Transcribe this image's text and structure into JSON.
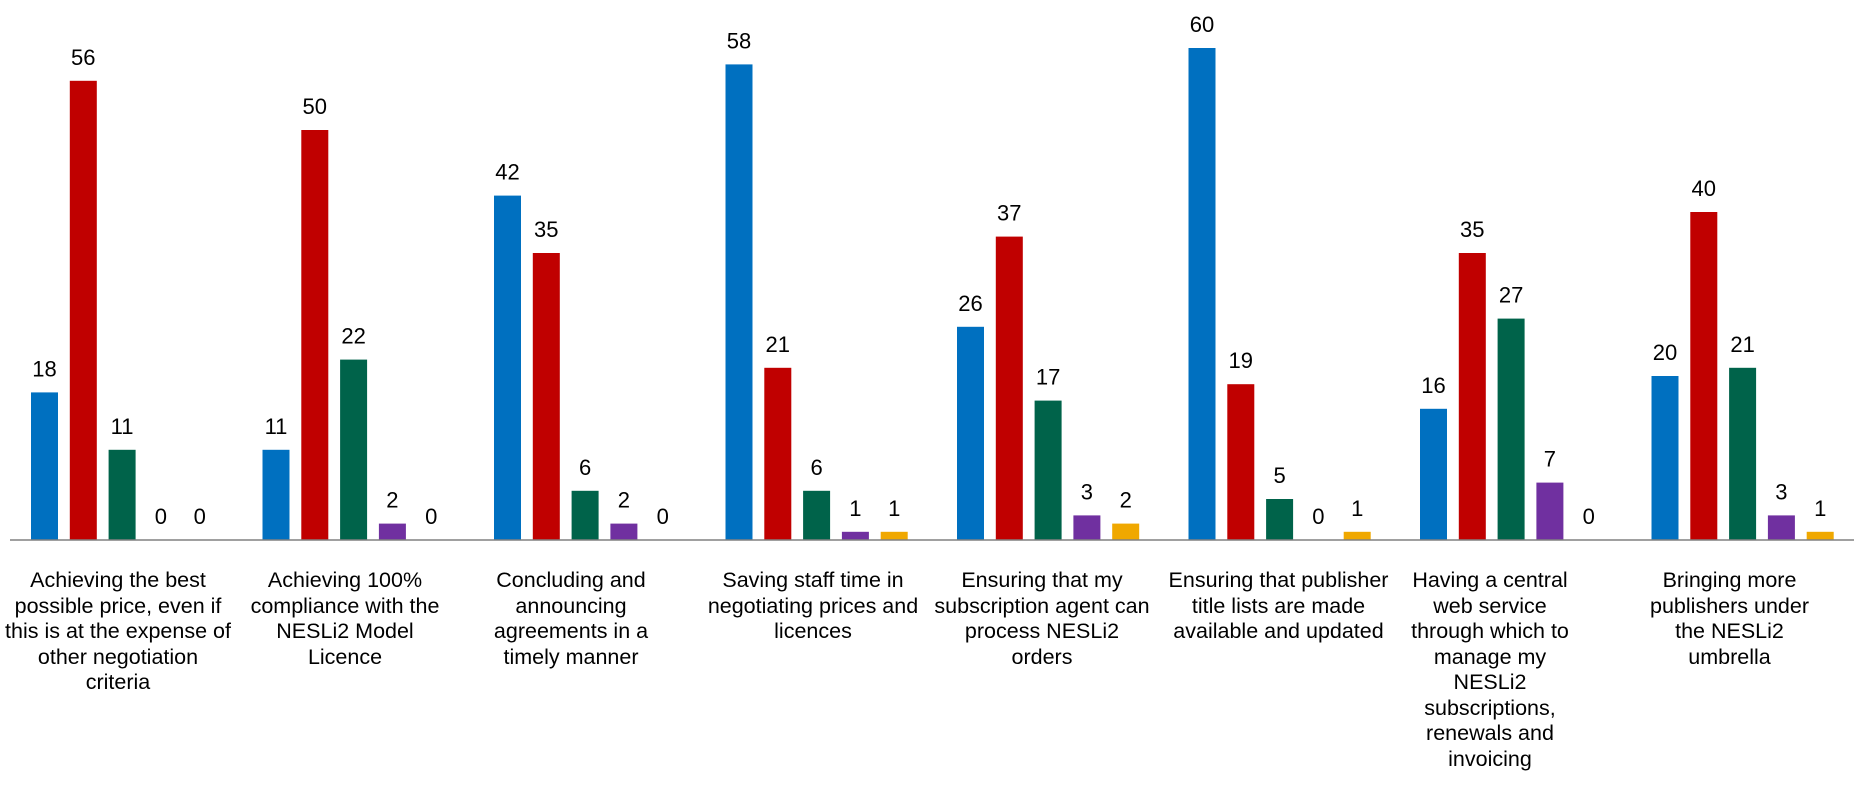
{
  "chart_data": {
    "type": "bar",
    "title": "",
    "xlabel": "",
    "ylabel": "",
    "ylim": [
      0,
      60
    ],
    "grid": false,
    "legend": "none",
    "categories": [
      "Achieving the best possible price, even if this is at the expense of other negotiation criteria",
      "Achieving 100% compliance with the NESLi2 Model Licence",
      "Concluding and announcing agreements in a timely manner",
      "Saving staff time in negotiating prices and licences",
      "Ensuring that my subscription agent can process NESLi2 orders",
      "Ensuring that publisher title lists are made available and updated",
      "Having a central web service through which to manage my NESLi2 subscriptions, renewals and invoicing",
      "Bringing more publishers under the NESLi2 umbrella"
    ],
    "series": [
      {
        "color": "#0070C0",
        "values": [
          18,
          11,
          42,
          58,
          26,
          60,
          16,
          20
        ]
      },
      {
        "color": "#C00000",
        "values": [
          56,
          50,
          35,
          21,
          37,
          19,
          35,
          40
        ]
      },
      {
        "color": "#00634A",
        "values": [
          11,
          22,
          6,
          6,
          17,
          5,
          27,
          21
        ]
      },
      {
        "color": "#7030A0",
        "values": [
          0,
          2,
          2,
          1,
          3,
          0,
          7,
          3
        ]
      },
      {
        "color": "#F0A800",
        "values": [
          0,
          0,
          0,
          1,
          2,
          1,
          0,
          1
        ]
      }
    ],
    "axis_color": "#808080"
  }
}
